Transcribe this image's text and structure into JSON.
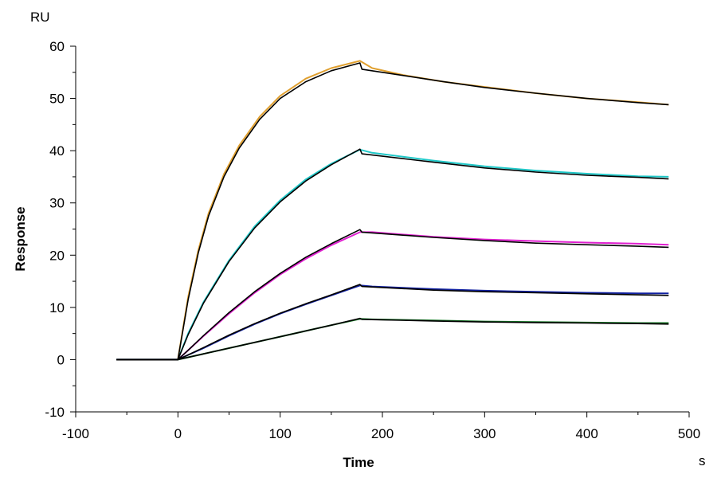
{
  "chart_data": {
    "type": "line",
    "title": "",
    "xlabel": "Time",
    "ylabel": "Response",
    "x_unit": "s",
    "y_unit": "RU",
    "xlim": [
      -100,
      500
    ],
    "ylim": [
      -10,
      60
    ],
    "x_ticks": [
      -100,
      0,
      100,
      200,
      300,
      400,
      500
    ],
    "y_ticks": [
      -10,
      0,
      10,
      20,
      30,
      40,
      50,
      60
    ],
    "grid": false,
    "legend": "none",
    "fit_color": "#000000",
    "series": [
      {
        "color": "#E0A030",
        "points": [
          [
            -60,
            0
          ],
          [
            0,
            0
          ],
          [
            10,
            12
          ],
          [
            20,
            21
          ],
          [
            30,
            28
          ],
          [
            45,
            35.5
          ],
          [
            60,
            41
          ],
          [
            80,
            46.5
          ],
          [
            100,
            50.5
          ],
          [
            125,
            53.8
          ],
          [
            150,
            55.8
          ],
          [
            178,
            57.2
          ],
          [
            190,
            55.8
          ],
          [
            220,
            54.5
          ],
          [
            260,
            53.2
          ],
          [
            300,
            52.2
          ],
          [
            350,
            51
          ],
          [
            400,
            50
          ],
          [
            450,
            49.3
          ],
          [
            480,
            48.8
          ]
        ],
        "fit": [
          [
            -60,
            0
          ],
          [
            0,
            0
          ],
          [
            10,
            11.5
          ],
          [
            20,
            20.5
          ],
          [
            30,
            27.5
          ],
          [
            45,
            35
          ],
          [
            60,
            40.5
          ],
          [
            80,
            46
          ],
          [
            100,
            50
          ],
          [
            125,
            53.2
          ],
          [
            150,
            55.3
          ],
          [
            178,
            56.8
          ],
          [
            180,
            55.6
          ],
          [
            220,
            54.4
          ],
          [
            260,
            53.2
          ],
          [
            300,
            52.1
          ],
          [
            350,
            51
          ],
          [
            400,
            50
          ],
          [
            450,
            49.2
          ],
          [
            480,
            48.8
          ]
        ]
      },
      {
        "color": "#20C8C8",
        "points": [
          [
            -60,
            0
          ],
          [
            0,
            0
          ],
          [
            10,
            5
          ],
          [
            25,
            11
          ],
          [
            50,
            19
          ],
          [
            75,
            25.5
          ],
          [
            100,
            30.5
          ],
          [
            125,
            34.5
          ],
          [
            150,
            37.5
          ],
          [
            178,
            40.2
          ],
          [
            190,
            39.6
          ],
          [
            250,
            38.1
          ],
          [
            300,
            37
          ],
          [
            350,
            36.2
          ],
          [
            400,
            35.6
          ],
          [
            450,
            35.1
          ],
          [
            480,
            35
          ]
        ],
        "fit": [
          [
            -60,
            0
          ],
          [
            0,
            0
          ],
          [
            10,
            4.8
          ],
          [
            25,
            10.8
          ],
          [
            50,
            18.8
          ],
          [
            75,
            25.2
          ],
          [
            100,
            30.2
          ],
          [
            125,
            34.2
          ],
          [
            150,
            37.3
          ],
          [
            178,
            40.3
          ],
          [
            180,
            39.4
          ],
          [
            250,
            37.8
          ],
          [
            300,
            36.7
          ],
          [
            350,
            35.9
          ],
          [
            400,
            35.3
          ],
          [
            450,
            34.9
          ],
          [
            480,
            34.6
          ]
        ]
      },
      {
        "color": "#E020D0",
        "points": [
          [
            -60,
            0
          ],
          [
            0,
            0
          ],
          [
            10,
            1.8
          ],
          [
            25,
            4.5
          ],
          [
            50,
            8.8
          ],
          [
            75,
            12.8
          ],
          [
            100,
            16.3
          ],
          [
            125,
            19.3
          ],
          [
            150,
            21.9
          ],
          [
            178,
            24.4
          ],
          [
            190,
            24.4
          ],
          [
            250,
            23.5
          ],
          [
            300,
            23
          ],
          [
            350,
            22.7
          ],
          [
            400,
            22.4
          ],
          [
            450,
            22.2
          ],
          [
            480,
            22
          ]
        ],
        "fit": [
          [
            -60,
            0
          ],
          [
            0,
            0
          ],
          [
            10,
            1.8
          ],
          [
            25,
            4.6
          ],
          [
            50,
            9
          ],
          [
            75,
            13
          ],
          [
            100,
            16.5
          ],
          [
            125,
            19.6
          ],
          [
            150,
            22.2
          ],
          [
            178,
            24.9
          ],
          [
            180,
            24.4
          ],
          [
            250,
            23.4
          ],
          [
            300,
            22.8
          ],
          [
            350,
            22.3
          ],
          [
            400,
            22
          ],
          [
            450,
            21.7
          ],
          [
            480,
            21.5
          ]
        ]
      },
      {
        "color": "#1020A0",
        "points": [
          [
            -60,
            0
          ],
          [
            0,
            0
          ],
          [
            10,
            0.9
          ],
          [
            25,
            2.2
          ],
          [
            50,
            4.6
          ],
          [
            75,
            6.8
          ],
          [
            100,
            8.8
          ],
          [
            125,
            10.6
          ],
          [
            150,
            12.3
          ],
          [
            178,
            14.2
          ],
          [
            190,
            14
          ],
          [
            250,
            13.5
          ],
          [
            300,
            13.2
          ],
          [
            350,
            13
          ],
          [
            400,
            12.8
          ],
          [
            450,
            12.7
          ],
          [
            480,
            12.7
          ]
        ],
        "fit": [
          [
            -60,
            0
          ],
          [
            0,
            0
          ],
          [
            10,
            0.9
          ],
          [
            25,
            2.3
          ],
          [
            50,
            4.7
          ],
          [
            75,
            6.9
          ],
          [
            100,
            8.9
          ],
          [
            125,
            10.7
          ],
          [
            150,
            12.4
          ],
          [
            178,
            14.4
          ],
          [
            180,
            14
          ],
          [
            250,
            13.3
          ],
          [
            300,
            13
          ],
          [
            350,
            12.8
          ],
          [
            400,
            12.6
          ],
          [
            450,
            12.4
          ],
          [
            480,
            12.3
          ]
        ]
      },
      {
        "color": "#107020",
        "points": [
          [
            -60,
            0
          ],
          [
            0,
            0
          ],
          [
            25,
            1.1
          ],
          [
            50,
            2.2
          ],
          [
            75,
            3.3
          ],
          [
            100,
            4.4
          ],
          [
            125,
            5.5
          ],
          [
            150,
            6.6
          ],
          [
            178,
            7.8
          ],
          [
            190,
            7.7
          ],
          [
            250,
            7.5
          ],
          [
            300,
            7.3
          ],
          [
            350,
            7.2
          ],
          [
            400,
            7.1
          ],
          [
            450,
            7
          ],
          [
            480,
            7
          ]
        ],
        "fit": [
          [
            -60,
            0
          ],
          [
            0,
            0
          ],
          [
            25,
            1.1
          ],
          [
            50,
            2.2
          ],
          [
            75,
            3.3
          ],
          [
            100,
            4.4
          ],
          [
            125,
            5.5
          ],
          [
            150,
            6.6
          ],
          [
            178,
            7.9
          ],
          [
            180,
            7.7
          ],
          [
            250,
            7.4
          ],
          [
            300,
            7.2
          ],
          [
            350,
            7.1
          ],
          [
            400,
            7
          ],
          [
            450,
            6.9
          ],
          [
            480,
            6.8
          ]
        ]
      }
    ]
  }
}
